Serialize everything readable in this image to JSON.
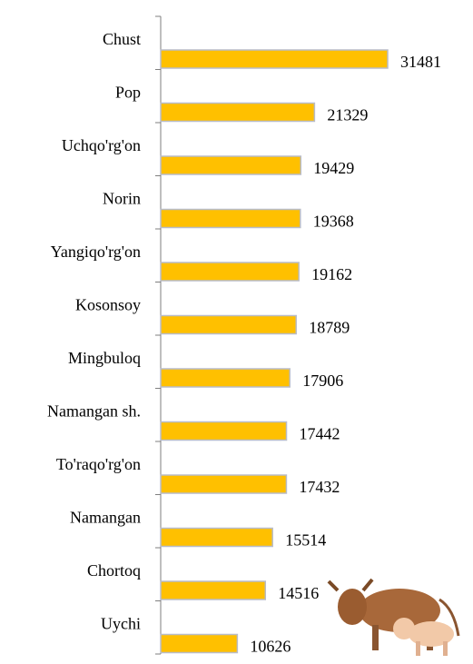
{
  "chart_data": {
    "type": "bar",
    "orientation": "horizontal",
    "categories": [
      "Chust",
      "Pop",
      "Uchqo'rg'on",
      "Norin",
      "Yangiqo'rg'on",
      "Kosonsoy",
      "Mingbuloq",
      "Namangan sh.",
      "To'raqo'rg'on",
      "Namangan",
      "Chortoq",
      "Uychi"
    ],
    "values": [
      31481,
      21329,
      19429,
      19368,
      19162,
      18789,
      17906,
      17442,
      17432,
      15514,
      14516,
      10626
    ],
    "color": "#ffc000"
  }
}
